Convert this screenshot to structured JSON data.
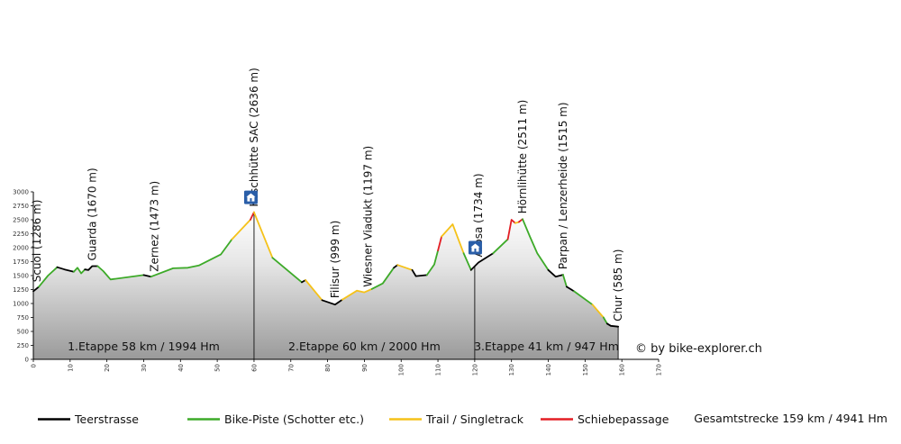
{
  "chart_data": {
    "type": "area",
    "title": "",
    "xlabel": "",
    "ylabel": "",
    "xlim": [
      0,
      170
    ],
    "ylim": [
      0,
      3000
    ],
    "xticks": [
      0,
      10,
      20,
      30,
      40,
      50,
      60,
      70,
      80,
      90,
      100,
      110,
      120,
      130,
      140,
      150,
      160,
      170
    ],
    "yticks": [
      0,
      250,
      500,
      750,
      1000,
      1250,
      1500,
      1750,
      2000,
      2250,
      2500,
      2750,
      3000
    ],
    "grid": false,
    "legend_position": "bottom",
    "surface_colors": {
      "Teerstrasse": "#000000",
      "Bike-Piste (Schotter etc.)": "#3daa29",
      "Trail / Singletrack": "#f5c21a",
      "Schiebepassage": "#e31e24"
    },
    "segments": [
      {
        "surface": "Teerstrasse",
        "points": [
          [
            0,
            1220
          ],
          [
            1.5,
            1300
          ]
        ]
      },
      {
        "surface": "Bike-Piste (Schotter etc.)",
        "points": [
          [
            1.5,
            1300
          ],
          [
            4,
            1500
          ],
          [
            6.5,
            1650
          ]
        ]
      },
      {
        "surface": "Teerstrasse",
        "points": [
          [
            6.5,
            1650
          ],
          [
            8.5,
            1610
          ],
          [
            11,
            1570
          ]
        ]
      },
      {
        "surface": "Bike-Piste (Schotter etc.)",
        "points": [
          [
            11,
            1570
          ],
          [
            12,
            1640
          ],
          [
            13,
            1540
          ],
          [
            14,
            1610
          ]
        ]
      },
      {
        "surface": "Teerstrasse",
        "points": [
          [
            14,
            1610
          ],
          [
            15,
            1600
          ],
          [
            16,
            1670
          ],
          [
            17.5,
            1670
          ]
        ]
      },
      {
        "surface": "Bike-Piste (Schotter etc.)",
        "points": [
          [
            17.5,
            1670
          ],
          [
            19,
            1580
          ],
          [
            21,
            1430
          ],
          [
            30,
            1510
          ]
        ]
      },
      {
        "surface": "Teerstrasse",
        "points": [
          [
            30,
            1510
          ],
          [
            32,
            1480
          ]
        ]
      },
      {
        "surface": "Bike-Piste (Schotter etc.)",
        "points": [
          [
            32,
            1480
          ],
          [
            38,
            1630
          ],
          [
            42,
            1640
          ],
          [
            45,
            1680
          ],
          [
            51,
            1880
          ],
          [
            54,
            2150
          ]
        ]
      },
      {
        "surface": "Trail / Singletrack",
        "points": [
          [
            54,
            2150
          ],
          [
            59,
            2500
          ]
        ]
      },
      {
        "surface": "Schiebepassage",
        "points": [
          [
            59,
            2500
          ],
          [
            60,
            2636
          ]
        ]
      },
      {
        "surface": "Trail / Singletrack",
        "points": [
          [
            60,
            2636
          ],
          [
            65,
            1820
          ]
        ]
      },
      {
        "surface": "Bike-Piste (Schotter etc.)",
        "points": [
          [
            65,
            1820
          ],
          [
            73,
            1380
          ]
        ]
      },
      {
        "surface": "Teerstrasse",
        "points": [
          [
            73,
            1380
          ],
          [
            74,
            1420
          ]
        ]
      },
      {
        "surface": "Trail / Singletrack",
        "points": [
          [
            74,
            1420
          ],
          [
            78.5,
            1060
          ]
        ]
      },
      {
        "surface": "Teerstrasse",
        "points": [
          [
            78.5,
            1060
          ],
          [
            82,
            980
          ],
          [
            84,
            1070
          ]
        ]
      },
      {
        "surface": "Trail / Singletrack",
        "points": [
          [
            84,
            1070
          ],
          [
            88,
            1230
          ],
          [
            90,
            1200
          ],
          [
            92,
            1260
          ]
        ]
      },
      {
        "surface": "Bike-Piste (Schotter etc.)",
        "points": [
          [
            92,
            1260
          ],
          [
            95,
            1360
          ],
          [
            98,
            1640
          ]
        ]
      },
      {
        "surface": "Teerstrasse",
        "points": [
          [
            98,
            1640
          ],
          [
            99,
            1690
          ]
        ]
      },
      {
        "surface": "Trail / Singletrack",
        "points": [
          [
            99,
            1690
          ],
          [
            103,
            1600
          ]
        ]
      },
      {
        "surface": "Teerstrasse",
        "points": [
          [
            103,
            1600
          ],
          [
            104,
            1490
          ],
          [
            107,
            1510
          ]
        ]
      },
      {
        "surface": "Bike-Piste (Schotter etc.)",
        "points": [
          [
            107,
            1510
          ],
          [
            109,
            1700
          ],
          [
            110,
            1950
          ]
        ]
      },
      {
        "surface": "Schiebepassage",
        "points": [
          [
            110,
            1950
          ],
          [
            111,
            2200
          ]
        ]
      },
      {
        "surface": "Trail / Singletrack",
        "points": [
          [
            111,
            2200
          ],
          [
            114,
            2420
          ],
          [
            117,
            1900
          ]
        ]
      },
      {
        "surface": "Bike-Piste (Schotter etc.)",
        "points": [
          [
            117,
            1900
          ],
          [
            119,
            1600
          ]
        ]
      },
      {
        "surface": "Teerstrasse",
        "points": [
          [
            119,
            1600
          ],
          [
            121,
            1734
          ],
          [
            125,
            1900
          ]
        ]
      },
      {
        "surface": "Bike-Piste (Schotter etc.)",
        "points": [
          [
            125,
            1900
          ],
          [
            129,
            2150
          ]
        ]
      },
      {
        "surface": "Schiebepassage",
        "points": [
          [
            129,
            2150
          ],
          [
            130,
            2500
          ],
          [
            131,
            2440
          ]
        ]
      },
      {
        "surface": "Trail / Singletrack",
        "points": [
          [
            131,
            2440
          ],
          [
            132,
            2460
          ]
        ]
      },
      {
        "surface": "Schiebepassage",
        "points": [
          [
            132,
            2460
          ],
          [
            133,
            2511
          ]
        ]
      },
      {
        "surface": "Bike-Piste (Schotter etc.)",
        "points": [
          [
            133,
            2511
          ],
          [
            135,
            2200
          ],
          [
            137,
            1900
          ],
          [
            140,
            1600
          ]
        ]
      },
      {
        "surface": "Teerstrasse",
        "points": [
          [
            140,
            1600
          ],
          [
            142,
            1480
          ],
          [
            144,
            1515
          ]
        ]
      },
      {
        "surface": "Bike-Piste (Schotter etc.)",
        "points": [
          [
            144,
            1515
          ],
          [
            145,
            1300
          ]
        ]
      },
      {
        "surface": "Teerstrasse",
        "points": [
          [
            145,
            1300
          ],
          [
            147,
            1220
          ]
        ]
      },
      {
        "surface": "Bike-Piste (Schotter etc.)",
        "points": [
          [
            147,
            1220
          ],
          [
            152,
            980
          ]
        ]
      },
      {
        "surface": "Trail / Singletrack",
        "points": [
          [
            152,
            980
          ],
          [
            155,
            750
          ]
        ]
      },
      {
        "surface": "Bike-Piste (Schotter etc.)",
        "points": [
          [
            155,
            750
          ],
          [
            156,
            640
          ]
        ]
      },
      {
        "surface": "Teerstrasse",
        "points": [
          [
            156,
            640
          ],
          [
            157,
            600
          ],
          [
            159,
            585
          ]
        ]
      }
    ],
    "annotations": [
      {
        "x": 1,
        "elevation": 1286,
        "label": "Scuol (1286 m)"
      },
      {
        "x": 16,
        "elevation": 1670,
        "label": "Guarda (1670 m)"
      },
      {
        "x": 33,
        "elevation": 1473,
        "label": "Zernez (1473 m)"
      },
      {
        "x": 60,
        "elevation": 2636,
        "label": "Keschhütte SAC (2636 m)",
        "hut": true
      },
      {
        "x": 82,
        "elevation": 999,
        "label": "Filisur (999 m)"
      },
      {
        "x": 91,
        "elevation": 1197,
        "label": "Wiesner Viadukt (1197 m)"
      },
      {
        "x": 121,
        "elevation": 1734,
        "label": "Arosa (1734 m)",
        "hut": true
      },
      {
        "x": 133,
        "elevation": 2511,
        "label": "Hörnlihütte (2511 m)"
      },
      {
        "x": 144,
        "elevation": 1515,
        "label": "Parpan / Lenzerheide (1515 m)"
      },
      {
        "x": 159,
        "elevation": 585,
        "label": "Chur (585 m)"
      }
    ],
    "stage_dividers": [
      60,
      120,
      159
    ],
    "stages": [
      {
        "from": 0,
        "to": 60,
        "label": "1.Etappe 58 km / 1994 Hm"
      },
      {
        "from": 60,
        "to": 120,
        "label": "2.Etappe 60 km / 2000 Hm"
      },
      {
        "from": 120,
        "to": 159,
        "label": "3.Etappe 41 km / 947 Hm"
      }
    ],
    "copyright": "© by bike-explorer.ch",
    "legend": [
      {
        "label": "Teerstrasse",
        "surface": "Teerstrasse"
      },
      {
        "label": "Bike-Piste (Schotter etc.)",
        "surface": "Bike-Piste (Schotter etc.)"
      },
      {
        "label": "Trail / Singletrack",
        "surface": "Trail / Singletrack"
      },
      {
        "label": "Schiebepassage",
        "surface": "Schiebepassage"
      }
    ],
    "total": "Gesamtstrecke 159 km / 4941 Hm"
  }
}
